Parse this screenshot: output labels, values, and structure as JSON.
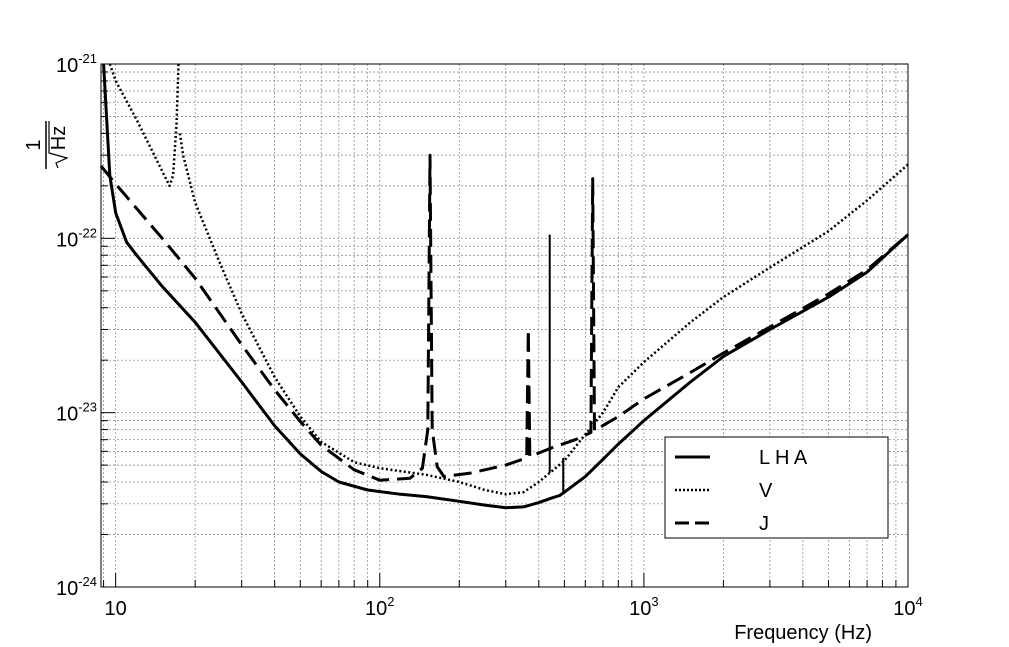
{
  "chart_data": {
    "type": "line",
    "title": "",
    "xlabel": "Frequency (Hz)",
    "ylabel": {
      "numerator": "1",
      "denominator": "Hz"
    },
    "x_scale": "log",
    "y_scale": "log",
    "xlim": [
      8.8,
      10000
    ],
    "ylim": [
      1e-24,
      1e-21
    ],
    "grid": true,
    "legend_position": "bottom-right",
    "x_ticks": [
      {
        "value": 10,
        "base": "10",
        "exp": ""
      },
      {
        "value": 100,
        "base": "10",
        "exp": "2"
      },
      {
        "value": 1000,
        "base": "10",
        "exp": "3"
      },
      {
        "value": 10000,
        "base": "10",
        "exp": "4"
      }
    ],
    "y_ticks": [
      {
        "value": 1e-24,
        "base": "10",
        "exp": "-24"
      },
      {
        "value": 1e-23,
        "base": "10",
        "exp": "-23"
      },
      {
        "value": 1e-22,
        "base": "10",
        "exp": "-22"
      },
      {
        "value": 1e-21,
        "base": "10",
        "exp": "-21"
      }
    ],
    "series": [
      {
        "name": "L H A",
        "style": "solid",
        "stroke_width": 3,
        "points": [
          [
            9.0,
            1e-21
          ],
          [
            9.5,
            2.3e-22
          ],
          [
            10,
            1.4e-22
          ],
          [
            11,
            9.5e-23
          ],
          [
            12,
            8e-23
          ],
          [
            15,
            5.3e-23
          ],
          [
            20,
            3.3e-23
          ],
          [
            30,
            1.5e-23
          ],
          [
            40,
            8.4e-24
          ],
          [
            50,
            5.8e-24
          ],
          [
            60,
            4.6e-24
          ],
          [
            70,
            4e-24
          ],
          [
            90,
            3.6e-24
          ],
          [
            120,
            3.4e-24
          ],
          [
            150,
            3.3e-24
          ],
          [
            200,
            3.1e-24
          ],
          [
            250,
            2.95e-24
          ],
          [
            300,
            2.85e-24
          ],
          [
            350,
            2.88e-24
          ],
          [
            400,
            3.05e-24
          ],
          [
            450,
            3.25e-24
          ],
          [
            480,
            3.35e-24
          ],
          [
            500,
            3.5e-24
          ],
          [
            600,
            4.3e-24
          ],
          [
            700,
            5.4e-24
          ],
          [
            800,
            6.6e-24
          ],
          [
            1000,
            9e-24
          ],
          [
            1500,
            1.5e-23
          ],
          [
            2000,
            2.1e-23
          ],
          [
            3000,
            3e-23
          ],
          [
            5000,
            4.6e-23
          ],
          [
            7000,
            6.4e-23
          ],
          [
            10000,
            1.05e-22
          ]
        ],
        "spikes": [
          {
            "x": 495,
            "peak": 5.5e-24
          }
        ]
      },
      {
        "name": "V",
        "style": "dotted",
        "stroke_width": 2.5,
        "points": [
          [
            9.5,
            1e-21
          ],
          [
            10,
            8e-22
          ],
          [
            12,
            4.8e-22
          ],
          [
            14,
            3e-22
          ],
          [
            15.5,
            2.2e-22
          ],
          [
            16,
            2e-22
          ],
          [
            16.5,
            2.3e-22
          ],
          [
            17,
            4.5e-22
          ],
          [
            17.3,
            1e-21
          ]
        ],
        "points_2": [
          [
            17.5,
            4e-22
          ],
          [
            18,
            3e-22
          ],
          [
            20,
            1.6e-22
          ],
          [
            25,
            7e-23
          ],
          [
            30,
            3.7e-23
          ],
          [
            40,
            1.6e-23
          ],
          [
            50,
            9.5e-24
          ],
          [
            60,
            6.8e-24
          ],
          [
            80,
            5.2e-24
          ],
          [
            100,
            4.8e-24
          ],
          [
            150,
            4.4e-24
          ],
          [
            200,
            4e-24
          ],
          [
            250,
            3.6e-24
          ],
          [
            300,
            3.4e-24
          ],
          [
            350,
            3.5e-24
          ],
          [
            400,
            4e-24
          ],
          [
            500,
            5.3e-24
          ],
          [
            600,
            7.5e-24
          ],
          [
            700,
            1e-23
          ],
          [
            800,
            1.4e-23
          ],
          [
            1000,
            1.95e-23
          ],
          [
            1500,
            3.3e-23
          ],
          [
            2000,
            4.6e-23
          ],
          [
            3000,
            6.8e-23
          ],
          [
            5000,
            1.1e-22
          ],
          [
            7000,
            1.65e-22
          ],
          [
            10000,
            2.65e-22
          ]
        ],
        "spikes": [
          {
            "x": 440,
            "peak": 1.05e-22
          }
        ]
      },
      {
        "name": "J",
        "style": "dashed",
        "stroke_width": 3,
        "points": [
          [
            8.8,
            2.6e-22
          ],
          [
            10,
            2.05e-22
          ],
          [
            15,
            1e-22
          ],
          [
            20,
            5.9e-23
          ],
          [
            30,
            2.45e-23
          ],
          [
            40,
            1.35e-23
          ],
          [
            50,
            8.9e-24
          ],
          [
            60,
            6.5e-24
          ],
          [
            80,
            4.7e-24
          ],
          [
            100,
            4.1e-24
          ],
          [
            130,
            4.2e-24
          ],
          [
            145,
            4.8e-24
          ],
          [
            152,
            8e-24
          ],
          [
            155,
            3e-22
          ],
          [
            158,
            8e-24
          ],
          [
            165,
            4.9e-24
          ],
          [
            175,
            4.3e-24
          ],
          [
            220,
            4.5e-24
          ],
          [
            300,
            5e-24
          ],
          [
            360,
            5.5e-24
          ],
          [
            365,
            3e-23
          ],
          [
            370,
            5.6e-24
          ],
          [
            450,
            6.3e-24
          ],
          [
            550,
            7e-24
          ],
          [
            630,
            7.7e-24
          ],
          [
            640,
            2.2e-22
          ],
          [
            650,
            7.9e-24
          ],
          [
            800,
            9.5e-24
          ],
          [
            1000,
            1.2e-23
          ],
          [
            1500,
            1.7e-23
          ],
          [
            2000,
            2.2e-23
          ],
          [
            3000,
            3.1e-23
          ],
          [
            5000,
            4.8e-23
          ],
          [
            7000,
            6.6e-23
          ],
          [
            10000,
            1.05e-22
          ]
        ]
      }
    ]
  },
  "legend": {
    "items": [
      {
        "label": "L H A",
        "style": "solid"
      },
      {
        "label": "V",
        "style": "dotted"
      },
      {
        "label": "J",
        "style": "dashed"
      }
    ]
  },
  "colors": {
    "line": "#000000",
    "grid": "#808080",
    "background": "#ffffff"
  }
}
